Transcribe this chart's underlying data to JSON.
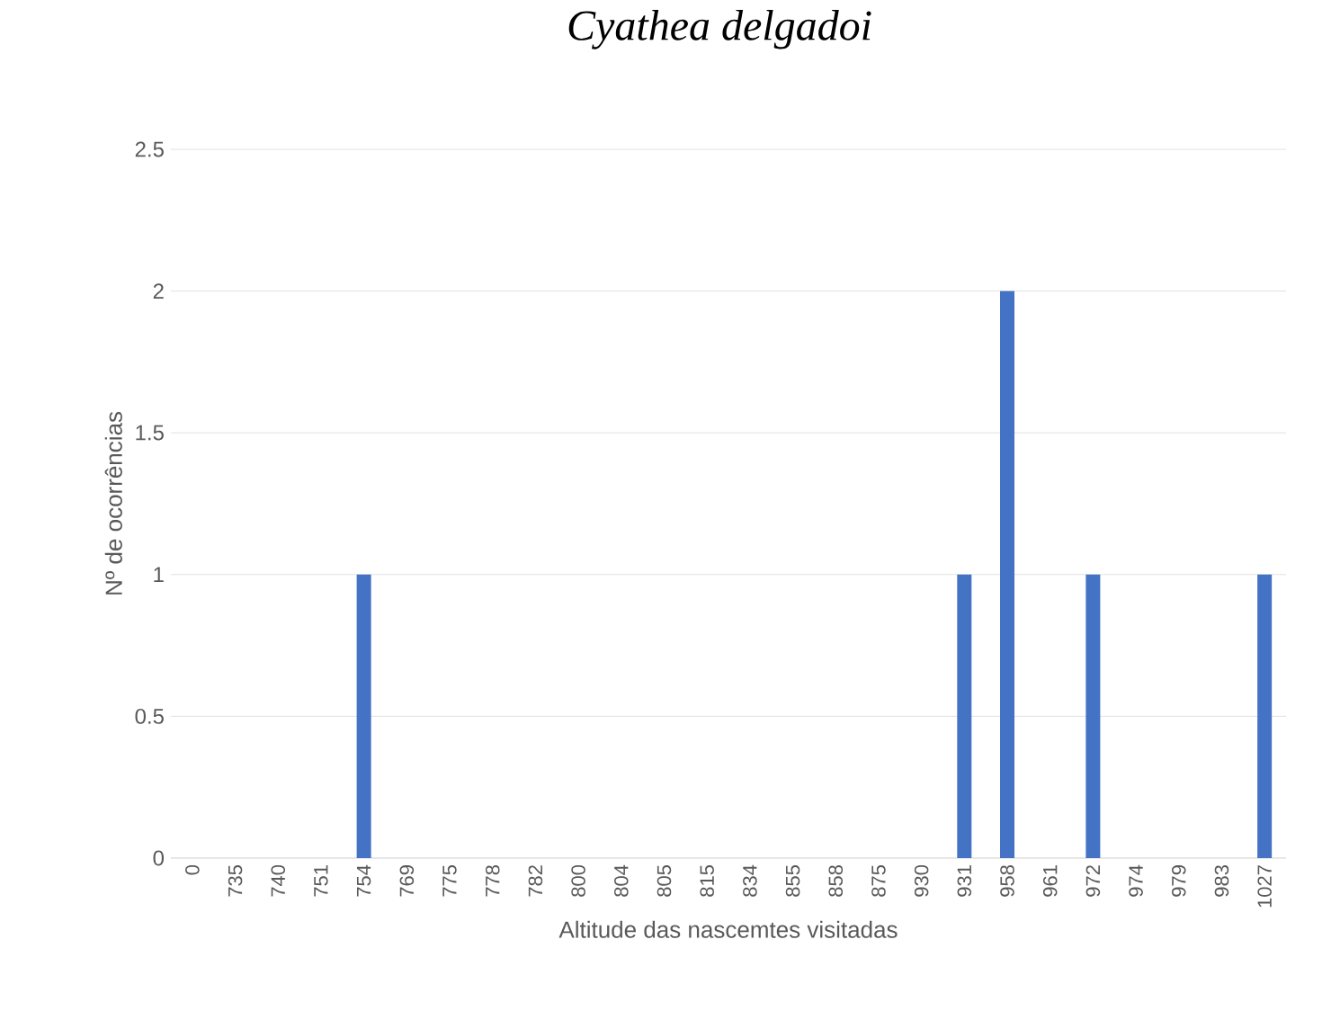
{
  "chart_data": {
    "type": "bar",
    "title": "Cyathea delgadoi",
    "xlabel": "Altitude das nascemtes visitadas",
    "ylabel": "Nº de ocorrências",
    "categories": [
      "0",
      "735",
      "740",
      "751",
      "754",
      "769",
      "775",
      "778",
      "782",
      "800",
      "804",
      "805",
      "815",
      "834",
      "855",
      "858",
      "875",
      "930",
      "931",
      "958",
      "961",
      "972",
      "974",
      "979",
      "983",
      "1027"
    ],
    "values": [
      0,
      0,
      0,
      0,
      1,
      0,
      0,
      0,
      0,
      0,
      0,
      0,
      0,
      0,
      0,
      0,
      0,
      0,
      1,
      2,
      0,
      1,
      0,
      0,
      0,
      1
    ],
    "color": "#4472c4",
    "ylim": [
      0,
      2.5
    ],
    "yticks": [
      0,
      0.5,
      1,
      1.5,
      2,
      2.5
    ],
    "grid": "y"
  }
}
